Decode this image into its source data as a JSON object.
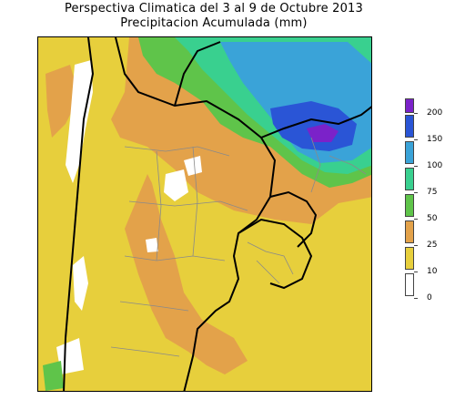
{
  "title": {
    "line1": "Perspectiva Climatica del 3 al 9 de Octubre 2013",
    "line2": "Precipitacion Acumulada (mm)"
  },
  "legend": {
    "labels": [
      "0",
      "10",
      "25",
      "50",
      "75",
      "100",
      "150",
      "200"
    ],
    "colors": [
      "#ffffff",
      "#e7cf3c",
      "#e3a24a",
      "#5fc44a",
      "#39d08f",
      "#3aa3d8",
      "#2a55d6",
      "#7b22c9"
    ]
  },
  "colors": {
    "dry": "#e7cf3c",
    "light": "#e3a24a",
    "moderate": "#5fc44a",
    "heavy": "#39d08f",
    "very_heavy": "#3aa3d8",
    "extreme": "#2a55d6",
    "max": "#7b22c9",
    "none": "#ffffff",
    "border": "#000000",
    "province": "#8a8a8a"
  }
}
